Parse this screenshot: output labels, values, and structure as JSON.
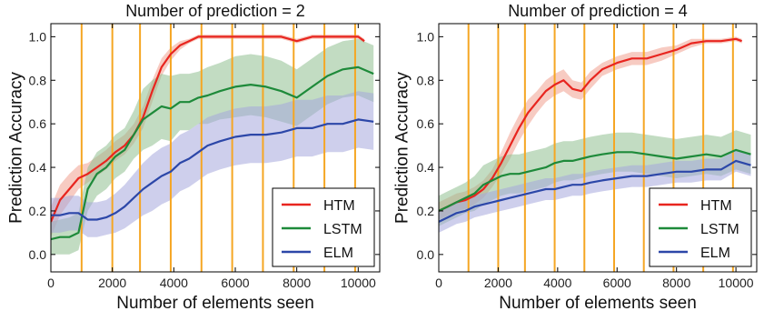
{
  "chart_data": [
    {
      "type": "line",
      "title": "Number of prediction = 2",
      "xlabel": "Number of elements seen",
      "ylabel": "Prediction Accuracy",
      "xlim": [
        0,
        10700
      ],
      "ylim": [
        -0.08,
        1.06
      ],
      "xticks": [
        0,
        2000,
        4000,
        6000,
        8000,
        10000
      ],
      "yticks": [
        0.0,
        0.2,
        0.4,
        0.6,
        0.8,
        1.0
      ],
      "vlines": [
        1000,
        2000,
        2900,
        3900,
        4900,
        5900,
        6900,
        7900,
        8900,
        9900
      ],
      "vline_color": "#f5a623",
      "grid": false,
      "legend": "bottom-right",
      "series": [
        {
          "name": "HTM",
          "color": "#e8251f",
          "band_color": "#f0a090",
          "x": [
            0,
            300,
            600,
            900,
            1200,
            1500,
            1800,
            2100,
            2400,
            2700,
            3000,
            3300,
            3600,
            3900,
            4200,
            4500,
            4800,
            5100,
            5500,
            6000,
            6500,
            7000,
            7500,
            8000,
            8500,
            9000,
            9500,
            10000,
            10200
          ],
          "y": [
            0.15,
            0.25,
            0.3,
            0.35,
            0.37,
            0.4,
            0.43,
            0.47,
            0.5,
            0.55,
            0.63,
            0.75,
            0.86,
            0.92,
            0.96,
            0.98,
            1.0,
            1.0,
            1.0,
            1.0,
            1.0,
            1.0,
            1.0,
            0.98,
            1.0,
            1.0,
            1.0,
            1.0,
            0.98
          ],
          "lower": [
            0.08,
            0.18,
            0.24,
            0.3,
            0.33,
            0.36,
            0.39,
            0.43,
            0.46,
            0.51,
            0.58,
            0.7,
            0.82,
            0.89,
            0.94,
            0.97,
            0.99,
            0.99,
            0.99,
            0.99,
            0.99,
            0.99,
            0.99,
            0.97,
            0.99,
            0.99,
            0.99,
            0.99,
            0.97
          ],
          "upper": [
            0.22,
            0.32,
            0.37,
            0.41,
            0.42,
            0.45,
            0.48,
            0.52,
            0.55,
            0.6,
            0.68,
            0.8,
            0.9,
            0.95,
            0.98,
            0.99,
            1.01,
            1.01,
            1.01,
            1.01,
            1.01,
            1.01,
            1.01,
            0.99,
            1.01,
            1.01,
            1.01,
            1.01,
            0.99
          ]
        },
        {
          "name": "LSTM",
          "color": "#1e8a3a",
          "band_color": "#8fbf8f",
          "x": [
            0,
            300,
            600,
            900,
            1200,
            1500,
            1800,
            2100,
            2400,
            2700,
            3000,
            3300,
            3600,
            3900,
            4200,
            4500,
            4800,
            5100,
            5500,
            6000,
            6500,
            7000,
            7500,
            8000,
            8500,
            9000,
            9500,
            10000,
            10500
          ],
          "y": [
            0.07,
            0.08,
            0.08,
            0.1,
            0.3,
            0.37,
            0.4,
            0.45,
            0.48,
            0.55,
            0.62,
            0.65,
            0.68,
            0.67,
            0.7,
            0.7,
            0.72,
            0.73,
            0.75,
            0.77,
            0.78,
            0.77,
            0.75,
            0.72,
            0.77,
            0.82,
            0.85,
            0.86,
            0.83
          ],
          "lower": [
            0.0,
            0.0,
            0.0,
            0.02,
            0.2,
            0.27,
            0.3,
            0.35,
            0.38,
            0.44,
            0.48,
            0.5,
            0.53,
            0.52,
            0.57,
            0.57,
            0.6,
            0.6,
            0.62,
            0.63,
            0.64,
            0.63,
            0.61,
            0.59,
            0.64,
            0.69,
            0.72,
            0.73,
            0.7
          ],
          "upper": [
            0.15,
            0.16,
            0.17,
            0.19,
            0.4,
            0.47,
            0.5,
            0.55,
            0.58,
            0.66,
            0.76,
            0.8,
            0.83,
            0.82,
            0.83,
            0.83,
            0.84,
            0.86,
            0.88,
            0.91,
            0.92,
            0.91,
            0.89,
            0.85,
            0.9,
            0.95,
            0.98,
            0.99,
            0.96
          ]
        },
        {
          "name": "ELM",
          "color": "#2c47a8",
          "band_color": "#a6a8dc",
          "x": [
            0,
            300,
            600,
            900,
            1200,
            1500,
            1800,
            2100,
            2400,
            2700,
            3000,
            3300,
            3600,
            3900,
            4200,
            4500,
            4800,
            5100,
            5500,
            6000,
            6500,
            7000,
            7500,
            8000,
            8500,
            9000,
            9500,
            10000,
            10500
          ],
          "y": [
            0.18,
            0.18,
            0.19,
            0.19,
            0.16,
            0.16,
            0.17,
            0.19,
            0.22,
            0.26,
            0.3,
            0.33,
            0.36,
            0.38,
            0.42,
            0.44,
            0.47,
            0.5,
            0.52,
            0.54,
            0.55,
            0.55,
            0.56,
            0.58,
            0.58,
            0.6,
            0.6,
            0.62,
            0.61
          ],
          "lower": [
            0.1,
            0.1,
            0.11,
            0.11,
            0.08,
            0.08,
            0.09,
            0.1,
            0.12,
            0.15,
            0.18,
            0.2,
            0.23,
            0.25,
            0.29,
            0.31,
            0.34,
            0.37,
            0.39,
            0.41,
            0.42,
            0.42,
            0.43,
            0.45,
            0.45,
            0.47,
            0.47,
            0.49,
            0.48
          ],
          "upper": [
            0.26,
            0.26,
            0.27,
            0.27,
            0.24,
            0.24,
            0.25,
            0.28,
            0.32,
            0.37,
            0.42,
            0.46,
            0.49,
            0.51,
            0.55,
            0.57,
            0.6,
            0.63,
            0.65,
            0.67,
            0.68,
            0.68,
            0.69,
            0.71,
            0.71,
            0.73,
            0.73,
            0.75,
            0.74
          ]
        }
      ]
    },
    {
      "type": "line",
      "title": "Number of prediction = 4",
      "xlabel": "Number of elements seen",
      "ylabel": "Prediction Accuracy",
      "xlim": [
        0,
        10700
      ],
      "ylim": [
        -0.08,
        1.06
      ],
      "xticks": [
        0,
        2000,
        4000,
        6000,
        8000,
        10000
      ],
      "yticks": [
        0.0,
        0.2,
        0.4,
        0.6,
        0.8,
        1.0
      ],
      "vlines": [
        1000,
        2000,
        2900,
        3900,
        4900,
        5900,
        6900,
        7900,
        8900,
        9900
      ],
      "vline_color": "#f5a623",
      "grid": false,
      "legend": "bottom-right",
      "series": [
        {
          "name": "HTM",
          "color": "#e8251f",
          "band_color": "#f0a090",
          "x": [
            0,
            300,
            600,
            900,
            1200,
            1500,
            1800,
            2100,
            2400,
            2700,
            3000,
            3300,
            3600,
            3900,
            4200,
            4500,
            4800,
            5100,
            5500,
            6000,
            6500,
            7000,
            7500,
            8000,
            8500,
            9000,
            9500,
            10000,
            10200
          ],
          "y": [
            0.2,
            0.22,
            0.24,
            0.25,
            0.27,
            0.3,
            0.35,
            0.42,
            0.5,
            0.58,
            0.65,
            0.7,
            0.75,
            0.78,
            0.8,
            0.76,
            0.75,
            0.8,
            0.85,
            0.88,
            0.9,
            0.9,
            0.92,
            0.94,
            0.97,
            0.98,
            0.98,
            0.99,
            0.98
          ],
          "lower": [
            0.16,
            0.18,
            0.2,
            0.21,
            0.23,
            0.26,
            0.31,
            0.37,
            0.44,
            0.52,
            0.59,
            0.65,
            0.7,
            0.73,
            0.75,
            0.72,
            0.71,
            0.76,
            0.82,
            0.85,
            0.87,
            0.87,
            0.89,
            0.92,
            0.95,
            0.97,
            0.97,
            0.98,
            0.97
          ],
          "upper": [
            0.24,
            0.26,
            0.28,
            0.29,
            0.31,
            0.34,
            0.39,
            0.47,
            0.56,
            0.64,
            0.71,
            0.75,
            0.8,
            0.83,
            0.85,
            0.8,
            0.79,
            0.84,
            0.88,
            0.91,
            0.93,
            0.93,
            0.95,
            0.96,
            0.99,
            0.99,
            0.99,
            1.0,
            0.99
          ]
        },
        {
          "name": "LSTM",
          "color": "#1e8a3a",
          "band_color": "#8fbf8f",
          "x": [
            0,
            300,
            600,
            900,
            1200,
            1500,
            1800,
            2100,
            2400,
            2700,
            3000,
            3300,
            3600,
            3900,
            4200,
            4500,
            4800,
            5100,
            5500,
            6000,
            6500,
            7000,
            7500,
            8000,
            8500,
            9000,
            9500,
            10000,
            10500
          ],
          "y": [
            0.2,
            0.22,
            0.24,
            0.26,
            0.28,
            0.32,
            0.34,
            0.36,
            0.37,
            0.37,
            0.38,
            0.39,
            0.4,
            0.42,
            0.43,
            0.43,
            0.44,
            0.45,
            0.46,
            0.47,
            0.47,
            0.46,
            0.45,
            0.44,
            0.45,
            0.46,
            0.45,
            0.48,
            0.46
          ],
          "lower": [
            0.13,
            0.15,
            0.17,
            0.19,
            0.2,
            0.23,
            0.25,
            0.27,
            0.28,
            0.28,
            0.29,
            0.3,
            0.31,
            0.33,
            0.34,
            0.34,
            0.35,
            0.36,
            0.37,
            0.38,
            0.38,
            0.37,
            0.36,
            0.35,
            0.36,
            0.37,
            0.36,
            0.39,
            0.37
          ],
          "upper": [
            0.27,
            0.29,
            0.31,
            0.33,
            0.36,
            0.41,
            0.43,
            0.45,
            0.46,
            0.46,
            0.47,
            0.48,
            0.49,
            0.51,
            0.52,
            0.52,
            0.53,
            0.54,
            0.55,
            0.56,
            0.56,
            0.55,
            0.54,
            0.53,
            0.54,
            0.55,
            0.54,
            0.57,
            0.55
          ]
        },
        {
          "name": "ELM",
          "color": "#2c47a8",
          "band_color": "#a6a8dc",
          "x": [
            0,
            300,
            600,
            900,
            1200,
            1500,
            1800,
            2100,
            2400,
            2700,
            3000,
            3300,
            3600,
            3900,
            4200,
            4500,
            4800,
            5100,
            5500,
            6000,
            6500,
            7000,
            7500,
            8000,
            8500,
            9000,
            9500,
            10000,
            10500
          ],
          "y": [
            0.15,
            0.17,
            0.19,
            0.2,
            0.22,
            0.23,
            0.24,
            0.25,
            0.26,
            0.27,
            0.28,
            0.29,
            0.3,
            0.3,
            0.31,
            0.32,
            0.32,
            0.33,
            0.34,
            0.35,
            0.36,
            0.36,
            0.37,
            0.38,
            0.38,
            0.39,
            0.39,
            0.43,
            0.41
          ],
          "lower": [
            0.1,
            0.12,
            0.14,
            0.15,
            0.17,
            0.18,
            0.19,
            0.2,
            0.21,
            0.22,
            0.23,
            0.24,
            0.25,
            0.25,
            0.26,
            0.27,
            0.27,
            0.28,
            0.29,
            0.3,
            0.31,
            0.31,
            0.32,
            0.33,
            0.33,
            0.34,
            0.34,
            0.38,
            0.36
          ],
          "upper": [
            0.2,
            0.22,
            0.24,
            0.25,
            0.27,
            0.28,
            0.29,
            0.3,
            0.31,
            0.32,
            0.33,
            0.34,
            0.35,
            0.35,
            0.36,
            0.37,
            0.37,
            0.38,
            0.39,
            0.4,
            0.41,
            0.41,
            0.42,
            0.43,
            0.43,
            0.44,
            0.44,
            0.48,
            0.46
          ]
        }
      ]
    }
  ]
}
